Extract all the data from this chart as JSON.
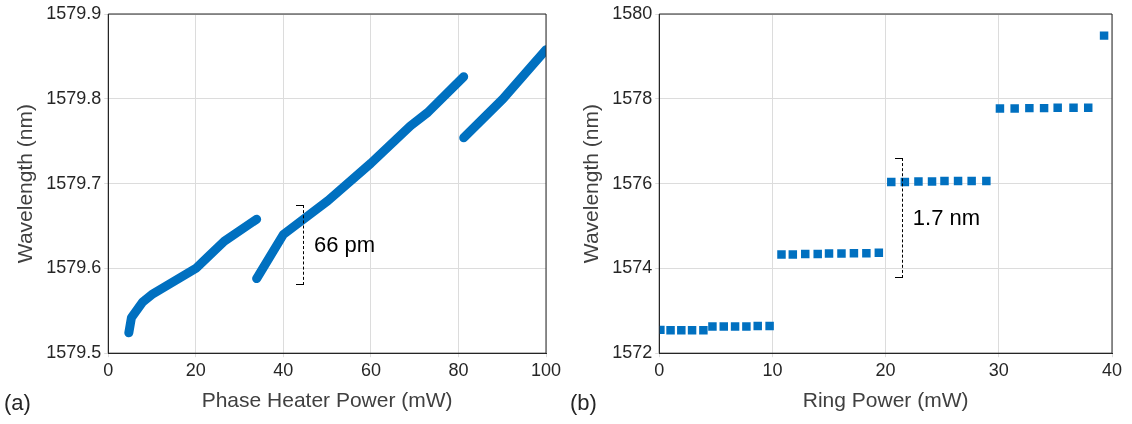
{
  "chart_data": [
    {
      "type": "line",
      "xlabel": "Phase Heater Power (mW)",
      "ylabel": "Wavelength (nm)",
      "xlim": [
        0,
        100
      ],
      "xticks": [
        0,
        20,
        40,
        60,
        80,
        100
      ],
      "ylim": [
        1579.5,
        1579.9
      ],
      "yticks": [
        1579.5,
        1579.6,
        1579.7,
        1579.8,
        1579.9
      ],
      "grid": true,
      "legend": false,
      "marker": "none",
      "line_style": "solid",
      "annotations": [
        "(a)",
        "66 pm"
      ],
      "series": [
        {
          "color": "#0070c0",
          "x": [
            4.7,
            5.3,
            7.8,
            10.2,
            20,
            26.5,
            33.9
          ],
          "values": [
            1579.524,
            1579.542,
            1579.56,
            1579.57,
            1579.6,
            1579.632,
            1579.658
          ]
        },
        {
          "color": "#0070c0",
          "x": [
            33.9,
            40,
            50.2,
            60,
            69,
            73,
            81.2
          ],
          "values": [
            1579.588,
            1579.64,
            1579.68,
            1579.724,
            1579.768,
            1579.784,
            1579.826
          ]
        },
        {
          "color": "#0070c0",
          "x": [
            81.2,
            90.2,
            100
          ],
          "values": [
            1579.754,
            1579.8,
            1579.858
          ]
        }
      ]
    },
    {
      "type": "scatter",
      "xlabel": "Ring Power (mW)",
      "ylabel": "Wavelength (nm)",
      "xlim": [
        0,
        40
      ],
      "xticks": [
        0,
        10,
        20,
        30,
        40
      ],
      "ylim": [
        1572,
        1580
      ],
      "yticks": [
        1572,
        1574,
        1576,
        1578,
        1580
      ],
      "grid": true,
      "legend": false,
      "marker": "square",
      "annotations": [
        "(b)",
        "1.7 nm"
      ],
      "series": [
        {
          "color": "#0070c0",
          "x": [
            0.1,
            1.0,
            1.95,
            2.9,
            3.9,
            4.7,
            5.7,
            6.7,
            7.7,
            8.7,
            9.75,
            10.8,
            11.8,
            12.9,
            14.0,
            15.0,
            16.1,
            17.2,
            18.3,
            19.4,
            20.5,
            21.7,
            22.9,
            24.1,
            25.2,
            26.4,
            27.6,
            28.9,
            30.1,
            31.4,
            32.7,
            34.0,
            35.2,
            36.6,
            37.9,
            39.3
          ],
          "values": [
            1572.55,
            1572.54,
            1572.54,
            1572.54,
            1572.54,
            1572.63,
            1572.63,
            1572.63,
            1572.63,
            1572.64,
            1572.64,
            1574.33,
            1574.33,
            1574.34,
            1574.34,
            1574.35,
            1574.35,
            1574.36,
            1574.36,
            1574.37,
            1576.04,
            1576.04,
            1576.05,
            1576.05,
            1576.06,
            1576.06,
            1576.06,
            1576.06,
            1577.77,
            1577.77,
            1577.78,
            1577.78,
            1577.79,
            1577.79,
            1577.79,
            1579.49
          ]
        }
      ]
    }
  ]
}
